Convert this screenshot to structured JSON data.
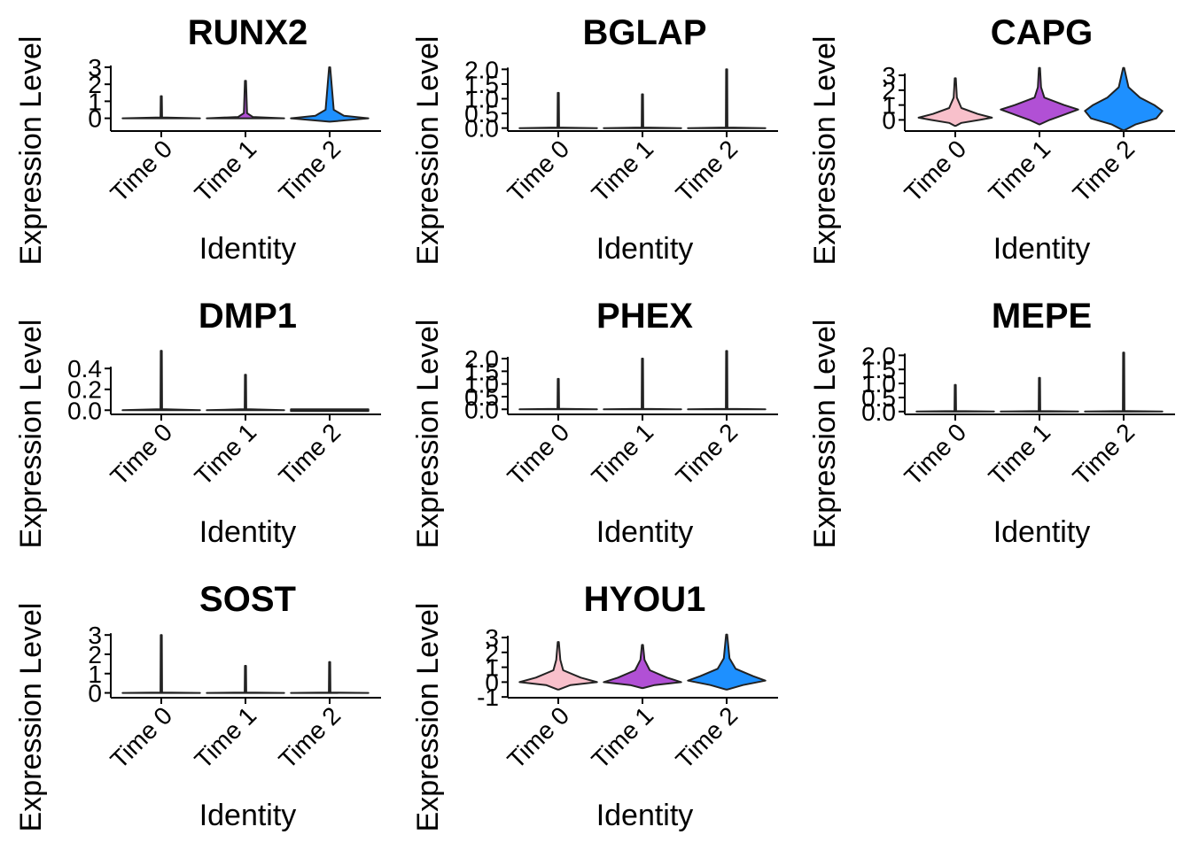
{
  "colors": {
    "Time 0": "#f8c0cb",
    "Time 1": "#b150d5",
    "Time 2": "#1e90ff",
    "outline": "#222222"
  },
  "chart_data": [
    {
      "type": "violin",
      "title": "RUNX2",
      "xlabel": "Identity",
      "ylabel": "Expression Level",
      "categories": [
        "Time 0",
        "Time 1",
        "Time 2"
      ],
      "ylim": [
        -0.75,
        3.05
      ],
      "yticks": [
        {
          "value": 0,
          "label": "0"
        },
        {
          "value": 1,
          "label": "1"
        },
        {
          "value": 2,
          "label": "2"
        },
        {
          "value": 3,
          "label": "3"
        }
      ],
      "groups": [
        {
          "name": "Time 0",
          "max": 1.3,
          "median": 0,
          "shape": [
            [
              0,
              0.95
            ],
            [
              0.05,
              0.02
            ],
            [
              1.3,
              0
            ]
          ]
        },
        {
          "name": "Time 1",
          "max": 2.2,
          "median": 0,
          "shape": [
            [
              0,
              0.95
            ],
            [
              0.08,
              0.18
            ],
            [
              0.3,
              0.04
            ],
            [
              2.2,
              0
            ]
          ]
        },
        {
          "name": "Time 2",
          "max": 3.0,
          "median": 0,
          "shape": [
            [
              -0.2,
              0
            ],
            [
              0,
              0.95
            ],
            [
              0.15,
              0.35
            ],
            [
              0.5,
              0.1
            ],
            [
              3.0,
              0
            ]
          ]
        }
      ]
    },
    {
      "type": "violin",
      "title": "BGLAP",
      "xlabel": "Identity",
      "ylabel": "Expression Level",
      "categories": [
        "Time 0",
        "Time 1",
        "Time 2"
      ],
      "ylim": [
        -0.1,
        2.1
      ],
      "yticks": [
        {
          "value": 0,
          "label": "0.0"
        },
        {
          "value": 0.5,
          "label": "0.5"
        },
        {
          "value": 1,
          "label": "1.0"
        },
        {
          "value": 1.5,
          "label": "1.5"
        },
        {
          "value": 2,
          "label": "2.0"
        }
      ],
      "groups": [
        {
          "name": "Time 0",
          "max": 1.2,
          "median": 0,
          "shape": [
            [
              0,
              0.95
            ],
            [
              0.02,
              0.02
            ],
            [
              1.2,
              0
            ]
          ]
        },
        {
          "name": "Time 1",
          "max": 1.15,
          "median": 0,
          "shape": [
            [
              0,
              0.95
            ],
            [
              0.02,
              0.02
            ],
            [
              1.15,
              0
            ]
          ]
        },
        {
          "name": "Time 2",
          "max": 2.0,
          "median": 0,
          "shape": [
            [
              0,
              0.95
            ],
            [
              0.02,
              0.02
            ],
            [
              2.0,
              0
            ]
          ]
        }
      ]
    },
    {
      "type": "violin",
      "title": "CAPG",
      "xlabel": "Identity",
      "ylabel": "Expression Level",
      "categories": [
        "Time 0",
        "Time 1",
        "Time 2"
      ],
      "ylim": [
        -0.75,
        3.6
      ],
      "yticks": [
        {
          "value": 0,
          "label": "0"
        },
        {
          "value": 1,
          "label": "1"
        },
        {
          "value": 2,
          "label": "2"
        },
        {
          "value": 3,
          "label": "3"
        }
      ],
      "groups": [
        {
          "name": "Time 0",
          "max": 2.8,
          "median": 0.2,
          "shape": [
            [
              -0.4,
              0
            ],
            [
              -0.2,
              0.15
            ],
            [
              0,
              0.6
            ],
            [
              0.15,
              0.9
            ],
            [
              0.4,
              0.55
            ],
            [
              0.8,
              0.15
            ],
            [
              1.5,
              0.04
            ],
            [
              2.8,
              0
            ]
          ]
        },
        {
          "name": "Time 1",
          "max": 3.5,
          "median": 0.7,
          "shape": [
            [
              -0.3,
              0
            ],
            [
              0,
              0.25
            ],
            [
              0.3,
              0.55
            ],
            [
              0.7,
              0.95
            ],
            [
              1.0,
              0.6
            ],
            [
              1.5,
              0.12
            ],
            [
              2.2,
              0.04
            ],
            [
              3.5,
              0
            ]
          ]
        },
        {
          "name": "Time 2",
          "max": 3.5,
          "median": 0.6,
          "shape": [
            [
              -0.7,
              0
            ],
            [
              -0.3,
              0.3
            ],
            [
              0.1,
              0.8
            ],
            [
              0.6,
              0.95
            ],
            [
              1.0,
              0.75
            ],
            [
              1.5,
              0.4
            ],
            [
              2.2,
              0.12
            ],
            [
              3.5,
              0
            ]
          ]
        }
      ]
    },
    {
      "type": "violin",
      "title": "DMP1",
      "xlabel": "Identity",
      "ylabel": "Expression Level",
      "categories": [
        "Time 0",
        "Time 1",
        "Time 2"
      ],
      "ylim": [
        -0.04,
        0.58
      ],
      "yticks": [
        {
          "value": 0,
          "label": "0.0"
        },
        {
          "value": 0.2,
          "label": "0.2"
        },
        {
          "value": 0.4,
          "label": "0.4"
        }
      ],
      "groups": [
        {
          "name": "Time 0",
          "max": 0.57,
          "median": 0,
          "shape": [
            [
              0,
              0.95
            ],
            [
              0.01,
              0.02
            ],
            [
              0.57,
              0
            ]
          ]
        },
        {
          "name": "Time 1",
          "max": 0.34,
          "median": 0,
          "shape": [
            [
              0,
              0.95
            ],
            [
              0.01,
              0.02
            ],
            [
              0.34,
              0
            ]
          ]
        },
        {
          "name": "Time 2",
          "max": 0,
          "median": 0,
          "shape": [
            [
              0,
              0.95
            ]
          ]
        }
      ]
    },
    {
      "type": "violin",
      "title": "PHEX",
      "xlabel": "Identity",
      "ylabel": "Expression Level",
      "categories": [
        "Time 0",
        "Time 1",
        "Time 2"
      ],
      "ylim": [
        -0.2,
        2.35
      ],
      "yticks": [
        {
          "value": 0,
          "label": "0.0"
        },
        {
          "value": 0.5,
          "label": "0.5"
        },
        {
          "value": 1,
          "label": "1.0"
        },
        {
          "value": 1.5,
          "label": "1.5"
        },
        {
          "value": 2,
          "label": "2.0"
        }
      ],
      "groups": [
        {
          "name": "Time 0",
          "max": 1.2,
          "median": 0,
          "shape": [
            [
              0,
              0.95
            ],
            [
              0.02,
              0.02
            ],
            [
              1.2,
              0
            ]
          ]
        },
        {
          "name": "Time 1",
          "max": 2.0,
          "median": 0,
          "shape": [
            [
              0,
              0.95
            ],
            [
              0.02,
              0.02
            ],
            [
              2.0,
              0
            ]
          ]
        },
        {
          "name": "Time 2",
          "max": 2.3,
          "median": 0,
          "shape": [
            [
              0,
              0.95
            ],
            [
              0.02,
              0.02
            ],
            [
              2.3,
              0
            ]
          ]
        }
      ]
    },
    {
      "type": "violin",
      "title": "MEPE",
      "xlabel": "Identity",
      "ylabel": "Expression Level",
      "categories": [
        "Time 0",
        "Time 1",
        "Time 2"
      ],
      "ylim": [
        -0.1,
        2.2
      ],
      "yticks": [
        {
          "value": 0,
          "label": "0.0"
        },
        {
          "value": 0.5,
          "label": "0.5"
        },
        {
          "value": 1,
          "label": "1.0"
        },
        {
          "value": 1.5,
          "label": "1.5"
        },
        {
          "value": 2,
          "label": "2.0"
        }
      ],
      "groups": [
        {
          "name": "Time 0",
          "max": 0.95,
          "median": 0,
          "shape": [
            [
              0,
              0.95
            ],
            [
              0.02,
              0.02
            ],
            [
              0.95,
              0
            ]
          ]
        },
        {
          "name": "Time 1",
          "max": 1.2,
          "median": 0,
          "shape": [
            [
              0,
              0.95
            ],
            [
              0.02,
              0.02
            ],
            [
              1.2,
              0
            ]
          ]
        },
        {
          "name": "Time 2",
          "max": 2.1,
          "median": 0,
          "shape": [
            [
              0,
              0.95
            ],
            [
              0.02,
              0.02
            ],
            [
              2.1,
              0
            ]
          ]
        }
      ]
    },
    {
      "type": "violin",
      "title": "SOST",
      "xlabel": "Identity",
      "ylabel": "Expression Level",
      "categories": [
        "Time 0",
        "Time 1",
        "Time 2"
      ],
      "ylim": [
        -0.25,
        3.1
      ],
      "yticks": [
        {
          "value": 0,
          "label": "0"
        },
        {
          "value": 1,
          "label": "1"
        },
        {
          "value": 2,
          "label": "2"
        },
        {
          "value": 3,
          "label": "3"
        }
      ],
      "groups": [
        {
          "name": "Time 0",
          "max": 3.0,
          "median": 0,
          "shape": [
            [
              0,
              0.95
            ],
            [
              0.02,
              0.02
            ],
            [
              3.0,
              0
            ]
          ]
        },
        {
          "name": "Time 1",
          "max": 1.4,
          "median": 0,
          "shape": [
            [
              0,
              0.95
            ],
            [
              0.02,
              0.02
            ],
            [
              1.4,
              0
            ]
          ]
        },
        {
          "name": "Time 2",
          "max": 1.6,
          "median": 0,
          "shape": [
            [
              0,
              0.95
            ],
            [
              0.02,
              0.02
            ],
            [
              1.6,
              0
            ]
          ]
        }
      ]
    },
    {
      "type": "violin",
      "title": "HYOU1",
      "xlabel": "Identity",
      "ylabel": "Expression Level",
      "categories": [
        "Time 0",
        "Time 1",
        "Time 2"
      ],
      "ylim": [
        -1.05,
        3.3
      ],
      "yticks": [
        {
          "value": -1,
          "label": "-1"
        },
        {
          "value": 0,
          "label": "0"
        },
        {
          "value": 1,
          "label": "1"
        },
        {
          "value": 2,
          "label": "2"
        },
        {
          "value": 3,
          "label": "3"
        }
      ],
      "groups": [
        {
          "name": "Time 0",
          "max": 2.7,
          "median": 0,
          "shape": [
            [
              -0.5,
              0
            ],
            [
              -0.2,
              0.3
            ],
            [
              0,
              0.95
            ],
            [
              0.3,
              0.55
            ],
            [
              0.8,
              0.12
            ],
            [
              1.5,
              0.05
            ],
            [
              2.7,
              0
            ]
          ]
        },
        {
          "name": "Time 1",
          "max": 2.5,
          "median": 0,
          "shape": [
            [
              -0.4,
              0
            ],
            [
              -0.2,
              0.3
            ],
            [
              0,
              0.95
            ],
            [
              0.3,
              0.6
            ],
            [
              0.8,
              0.18
            ],
            [
              1.5,
              0.05
            ],
            [
              2.5,
              0
            ]
          ]
        },
        {
          "name": "Time 2",
          "max": 3.2,
          "median": 0.1,
          "shape": [
            [
              -0.5,
              0
            ],
            [
              -0.2,
              0.4
            ],
            [
              0.1,
              0.95
            ],
            [
              0.4,
              0.65
            ],
            [
              0.9,
              0.22
            ],
            [
              1.6,
              0.07
            ],
            [
              3.2,
              0
            ]
          ]
        }
      ]
    }
  ]
}
